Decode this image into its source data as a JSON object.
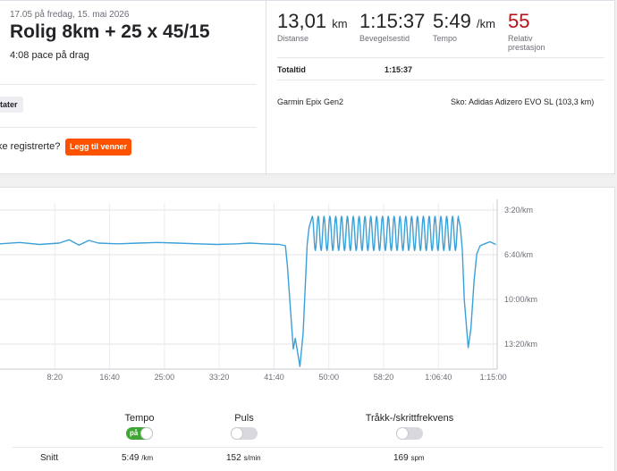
{
  "activity": {
    "date": "17.05 på fredag, 15. mai 2026",
    "title": "Rolig 8km + 25 x 45/15",
    "description": "4:08 pace på drag",
    "chip": "tater",
    "invite_text": "ke registrerte?",
    "invite_button": "Legg til venner"
  },
  "stats": [
    {
      "value": "13,01",
      "unit": "km",
      "label": "Distanse"
    },
    {
      "value": "1:15:37",
      "unit": "",
      "label": "Bevegelsestid"
    },
    {
      "value": "5:49",
      "unit": "/km",
      "label": "Tempo"
    },
    {
      "value": "55",
      "unit": "",
      "label": "Relativ prestasjon"
    }
  ],
  "totals": {
    "label": "Totaltid",
    "value": "1:15:37"
  },
  "gear": {
    "device": "Garmin Epix Gen2",
    "shoes": "Sko: Adidas Adizero EVO SL (103,3 km)"
  },
  "colors": {
    "accent": "#fc5200",
    "line": "#3aa0d8",
    "relative_effort": "#b3141c",
    "toggle_on": "#3fa535"
  },
  "toggles": {
    "tempo": {
      "label": "Tempo",
      "state": "på"
    },
    "puls": {
      "label": "Puls"
    },
    "cadence": {
      "label": "Tråkk-/skrittfrekvens"
    }
  },
  "averages": {
    "label": "Snitt",
    "tempo": {
      "value": "5:49",
      "unit": "/km"
    },
    "puls": {
      "value": "152",
      "unit": "s/min"
    },
    "cadence": {
      "value": "169",
      "unit": "spm"
    }
  },
  "chart_data": {
    "type": "line",
    "x_unit": "elapsed time",
    "y_unit": "pace min/km (inverted axis)",
    "x_tick_labels": [
      "8:20",
      "16:40",
      "25:00",
      "33:20",
      "41:40",
      "50:00",
      "58:20",
      "1:06:40",
      "1:15:00"
    ],
    "y_tick_labels": [
      "3:20/km",
      "6:40/km",
      "10:00/km",
      "13:20/km"
    ],
    "x_ticks_minutes": [
      8.33,
      16.67,
      25,
      33.33,
      41.67,
      50,
      58.33,
      66.67,
      75
    ],
    "y_ticks_minutes": [
      3.33,
      6.67,
      10,
      13.33
    ],
    "xlim_minutes": [
      0,
      75.6
    ],
    "ylim_minutes": [
      2.8,
      15.2
    ],
    "y_inverted": true,
    "grid": true,
    "series": [
      {
        "x": [
          0,
          3,
          6,
          9,
          10.5,
          12,
          13.5,
          15,
          18,
          21,
          24,
          27,
          30,
          33,
          36,
          38,
          40,
          42.5,
          43.4,
          43.7,
          44.2,
          44.6,
          44.9,
          45.3,
          45.6,
          46.1,
          46.7,
          47.0,
          47.5,
          69.7,
          70.0,
          70.3,
          70.6,
          71.2,
          71.6,
          72.1,
          72.5,
          73.0,
          73.7,
          74.5,
          75.4
        ],
        "y": [
          5.85,
          5.75,
          5.9,
          5.8,
          5.55,
          5.95,
          5.6,
          5.8,
          5.85,
          5.8,
          5.75,
          5.8,
          5.85,
          5.9,
          5.85,
          5.8,
          5.85,
          5.9,
          6.0,
          7.5,
          11.0,
          13.7,
          12.9,
          14.1,
          15.0,
          12.5,
          5.9,
          4.6,
          3.8,
          3.9,
          4.6,
          6.3,
          10.0,
          13.6,
          12.2,
          8.5,
          6.6,
          6.0,
          5.85,
          5.7,
          5.9
        ]
      },
      {
        "name": "intervals",
        "reps": 25,
        "x_start": 47.5,
        "x_end": 69.7,
        "fast_pace": 3.8,
        "slow_pace": 6.35
      }
    ]
  }
}
